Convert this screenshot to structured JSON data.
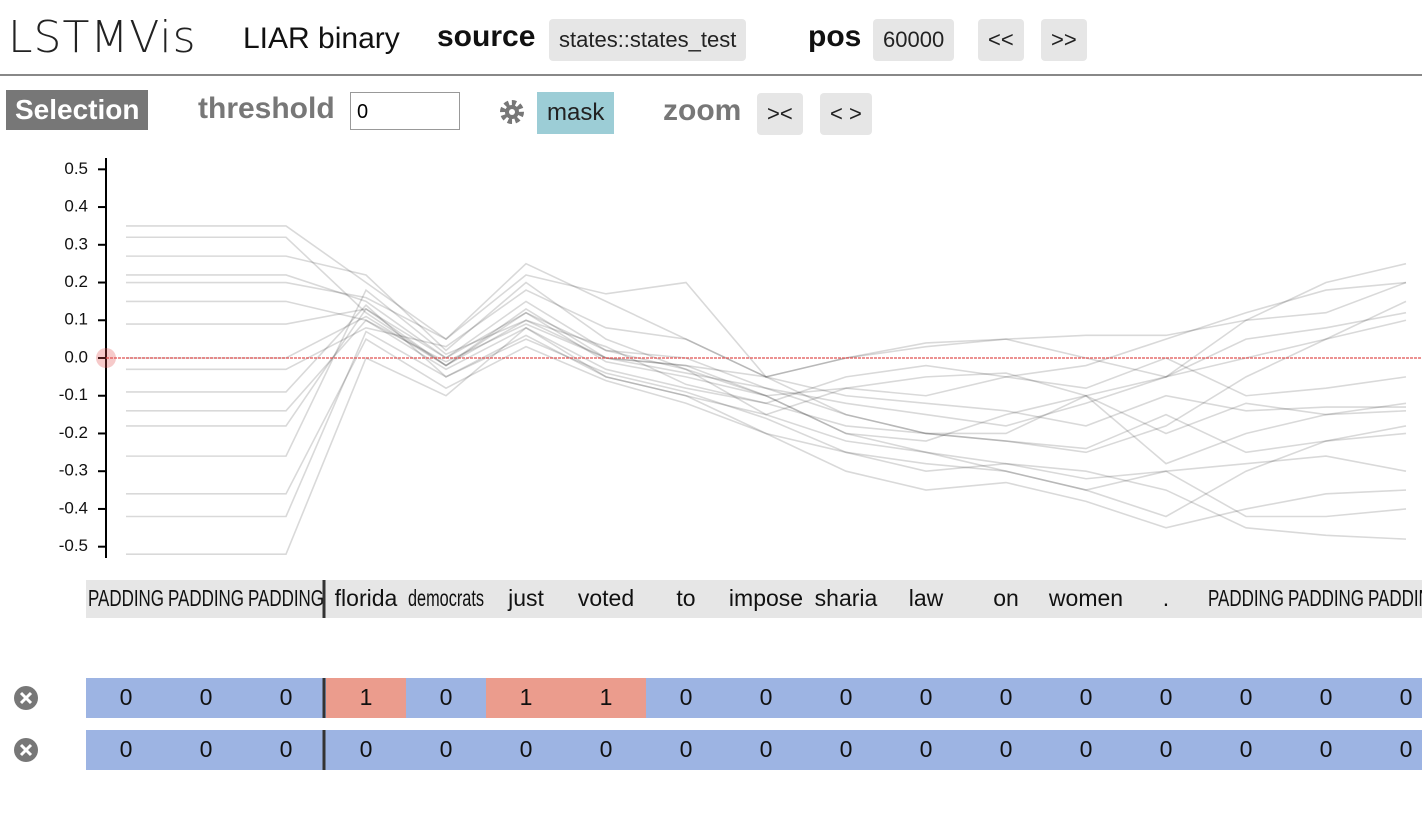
{
  "header": {
    "logo": "LSTMVis",
    "dataset": "LIAR binary",
    "source_label": "source",
    "source_value": "states::states_test",
    "pos_label": "pos",
    "pos_value": "60000",
    "prev": "<<",
    "next": ">>"
  },
  "toolbar": {
    "selection": "Selection",
    "threshold_label": "threshold",
    "threshold_value": 0,
    "mask": "mask",
    "zoom_label": "zoom",
    "zoom_in": "><",
    "zoom_out": "< >"
  },
  "chart_data": {
    "type": "line",
    "categories": [
      "PADDING",
      "PADDING",
      "PADDING",
      "florida",
      "democrats",
      "just",
      "voted",
      "to",
      "impose",
      "sharia",
      "law",
      "on",
      "women",
      ".",
      "PADDING",
      "PADDING",
      "PADDING"
    ],
    "ylim": [
      -0.53,
      0.53
    ],
    "yticks": [
      -0.5,
      -0.4,
      -0.3,
      -0.2,
      -0.1,
      {
        "value": 0,
        "label": "0.0"
      },
      0.1,
      0.2,
      0.3,
      0.4,
      0.5
    ],
    "threshold_color": "#e05050",
    "series": [
      {
        "color": "#000000",
        "values": [
          0.35,
          0.35,
          0.35,
          0.2,
          0.05,
          0.25,
          0.15,
          0.05,
          -0.05,
          -0.15,
          -0.2,
          -0.2,
          -0.1,
          -0.05,
          0.1,
          0.2,
          0.25
        ]
      },
      {
        "color": "#000000",
        "values": [
          0.32,
          0.32,
          0.32,
          0.12,
          -0.02,
          0.1,
          0.0,
          -0.02,
          -0.1,
          -0.08,
          -0.05,
          -0.04,
          -0.1,
          -0.2,
          -0.12,
          -0.15,
          -0.14
        ]
      },
      {
        "color": "#000000",
        "values": [
          0.27,
          0.27,
          0.27,
          0.22,
          0.02,
          0.2,
          0.05,
          -0.03,
          -0.1,
          -0.2,
          -0.25,
          -0.3,
          -0.35,
          -0.3,
          -0.42,
          -0.42,
          -0.4
        ]
      },
      {
        "color": "#000000",
        "values": [
          0.22,
          0.22,
          0.22,
          0.15,
          0.0,
          0.15,
          0.02,
          -0.03,
          -0.15,
          -0.08,
          -0.1,
          -0.05,
          -0.02,
          0.05,
          0.12,
          0.18,
          0.2
        ]
      },
      {
        "color": "#000000",
        "values": [
          0.15,
          0.15,
          0.15,
          0.1,
          -0.03,
          0.08,
          -0.03,
          -0.08,
          -0.12,
          -0.18,
          -0.2,
          -0.22,
          -0.24,
          -0.15,
          -0.25,
          -0.22,
          -0.2
        ]
      },
      {
        "color": "#000000",
        "values": [
          0.09,
          0.09,
          0.09,
          0.13,
          0.0,
          0.12,
          0.02,
          0.0,
          -0.08,
          -0.12,
          -0.15,
          -0.18,
          -0.12,
          -0.05,
          0.0,
          0.05,
          0.1
        ]
      },
      {
        "color": "#000000",
        "values": [
          0.0,
          0.0,
          0.0,
          0.11,
          -0.02,
          0.12,
          -0.01,
          -0.05,
          -0.1,
          -0.2,
          -0.22,
          -0.15,
          -0.1,
          -0.28,
          -0.2,
          -0.15,
          -0.12
        ]
      },
      {
        "color": "#000000",
        "values": [
          -0.03,
          -0.03,
          -0.03,
          0.08,
          0.03,
          0.18,
          0.08,
          0.05,
          -0.05,
          0.0,
          0.03,
          0.05,
          0.0,
          -0.05,
          0.05,
          0.08,
          0.12
        ]
      },
      {
        "color": "#000000",
        "values": [
          -0.09,
          -0.09,
          -0.09,
          0.14,
          -0.05,
          0.06,
          -0.05,
          -0.1,
          -0.2,
          -0.25,
          -0.3,
          -0.28,
          -0.32,
          -0.3,
          -0.28,
          -0.26,
          -0.3
        ]
      },
      {
        "color": "#000000",
        "values": [
          -0.14,
          -0.14,
          -0.14,
          0.1,
          -0.01,
          0.09,
          0.0,
          -0.02,
          -0.05,
          -0.1,
          -0.12,
          -0.14,
          -0.18,
          -0.1,
          -0.14,
          -0.13,
          -0.13
        ]
      },
      {
        "color": "#000000",
        "values": [
          -0.18,
          -0.18,
          -0.18,
          0.13,
          -0.02,
          0.13,
          0.0,
          -0.04,
          -0.08,
          -0.15,
          -0.2,
          -0.22,
          -0.25,
          -0.18,
          -0.05,
          0.05,
          0.15
        ]
      },
      {
        "color": "#000000",
        "values": [
          -0.26,
          -0.26,
          -0.26,
          0.18,
          0.01,
          0.1,
          0.03,
          -0.07,
          -0.12,
          -0.05,
          -0.02,
          -0.05,
          -0.08,
          0.0,
          -0.1,
          -0.08,
          -0.05
        ]
      },
      {
        "color": "#000000",
        "values": [
          -0.36,
          -0.36,
          -0.36,
          0.05,
          -0.08,
          0.03,
          -0.06,
          -0.12,
          -0.2,
          -0.3,
          -0.35,
          -0.33,
          -0.38,
          -0.45,
          -0.4,
          -0.36,
          -0.35
        ]
      },
      {
        "color": "#000000",
        "values": [
          -0.42,
          -0.42,
          -0.42,
          0.07,
          -0.05,
          0.05,
          -0.04,
          -0.09,
          -0.16,
          -0.25,
          -0.28,
          -0.3,
          -0.35,
          -0.42,
          -0.3,
          -0.22,
          -0.18
        ]
      },
      {
        "color": "#000000",
        "values": [
          -0.52,
          -0.52,
          -0.52,
          0.0,
          -0.1,
          0.08,
          -0.05,
          -0.1,
          -0.15,
          -0.22,
          -0.25,
          -0.28,
          -0.3,
          -0.35,
          -0.45,
          -0.47,
          -0.48
        ]
      },
      {
        "color": "#000000",
        "values": [
          0.2,
          0.2,
          0.2,
          0.16,
          0.05,
          0.22,
          0.17,
          0.2,
          -0.05,
          0.0,
          0.04,
          0.05,
          0.06,
          0.06,
          0.1,
          0.12,
          0.2
        ]
      }
    ]
  },
  "meta": {
    "cell_colors": [
      "#9db4e3",
      "#eb9c8d"
    ],
    "rows": [
      [
        0,
        0,
        0,
        1,
        0,
        1,
        1,
        0,
        0,
        0,
        0,
        0,
        0,
        0,
        0,
        0,
        0
      ],
      [
        0,
        0,
        0,
        0,
        0,
        0,
        0,
        0,
        0,
        0,
        0,
        0,
        0,
        0,
        0,
        0,
        0
      ]
    ]
  }
}
